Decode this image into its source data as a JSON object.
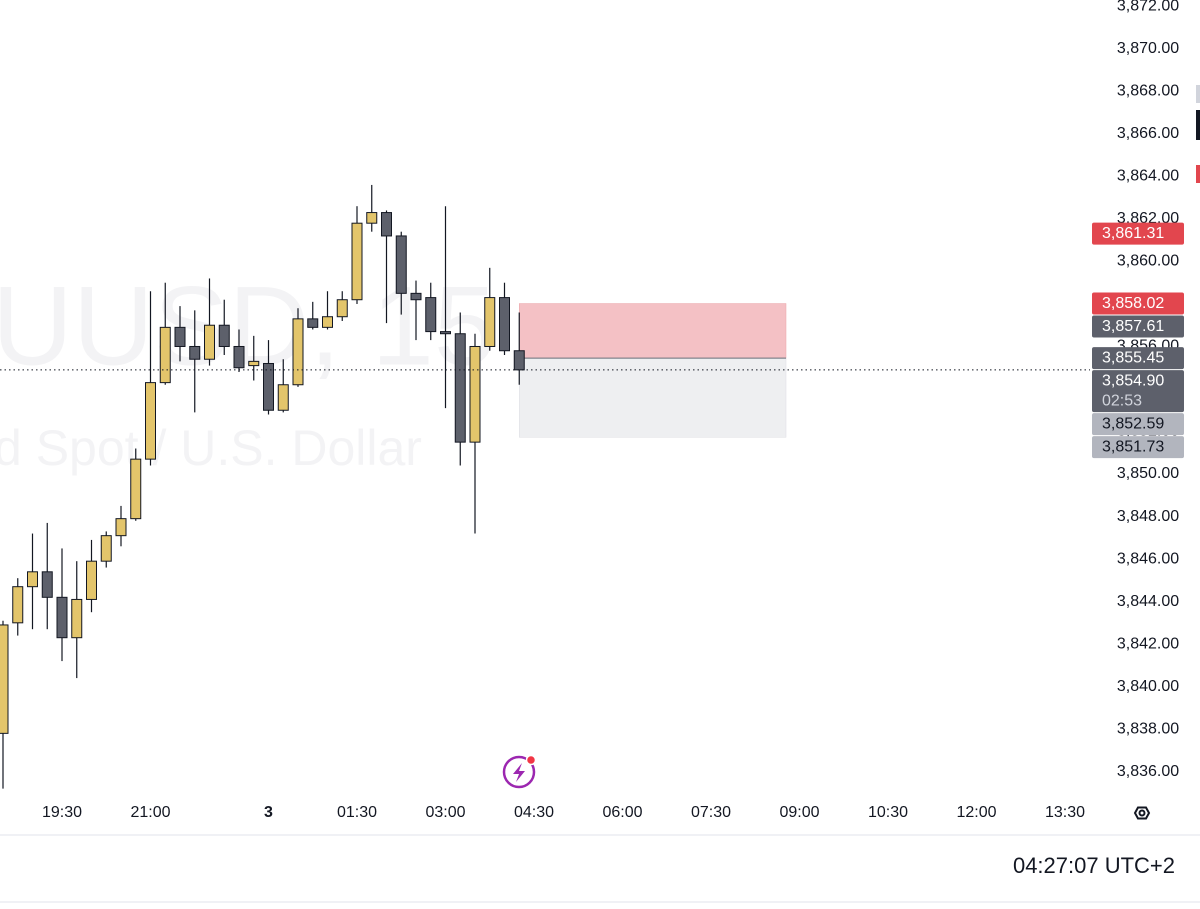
{
  "chart_data": {
    "type": "candlestick",
    "watermark_title": "UUSD, 15",
    "watermark_subtitle": "d Spot / U.S. Dollar",
    "categories": [
      null,
      null,
      null,
      null,
      "19:30",
      null,
      null,
      null,
      null,
      null,
      "21:00",
      null,
      null,
      null,
      null,
      null,
      null,
      null,
      "3",
      null,
      null,
      null,
      null,
      null,
      "01:30",
      null,
      null,
      null,
      null,
      null,
      "03:00",
      null,
      null,
      null,
      null,
      null,
      "04:30",
      null,
      null,
      null,
      null,
      null,
      "06:00",
      null,
      null,
      null,
      null,
      null,
      "07:30",
      null,
      null,
      null,
      null,
      null,
      "09:00",
      null,
      null,
      null,
      null,
      null,
      "10:30",
      null,
      null,
      null,
      null,
      null,
      "12:00",
      null,
      null,
      null,
      null,
      null,
      "13:30"
    ],
    "open": [
      3837.8,
      3843.0,
      3844.7,
      3845.4,
      3844.2,
      3842.3,
      3844.1,
      3845.9,
      3847.1,
      3847.9,
      3850.7,
      3854.3,
      3856.9,
      3856.0,
      3855.4,
      3857.0,
      3856.0,
      3855.1,
      3855.2,
      3853.0,
      3854.2,
      3857.3,
      3856.9,
      3857.4,
      3858.2,
      3861.8,
      3862.3,
      3861.2,
      3858.5,
      3858.3,
      3856.7,
      3856.6,
      3851.5,
      3856.0,
      3858.3,
      3855.8,
      null,
      null,
      null,
      null,
      null,
      null,
      null,
      null,
      null,
      null,
      null,
      null,
      null,
      null,
      null,
      null,
      null,
      null,
      null,
      null,
      null,
      null,
      null,
      null,
      null,
      null,
      null,
      null,
      null,
      null,
      null,
      null,
      null,
      null,
      null,
      null,
      null
    ],
    "high": [
      3843.1,
      3845.1,
      3847.2,
      3847.7,
      3846.5,
      3845.9,
      3846.9,
      3847.3,
      3848.5,
      3851.2,
      3858.6,
      3859.0,
      3857.9,
      3857.7,
      3859.2,
      3858.2,
      3856.8,
      3856.5,
      3856.3,
      3855.4,
      3857.8,
      3858.1,
      3858.6,
      3858.6,
      3862.6,
      3863.6,
      3862.4,
      3861.4,
      3859.1,
      3859.0,
      3862.6,
      3857.6,
      3856.6,
      3859.7,
      3859.0,
      3857.6,
      null,
      null,
      null,
      null,
      null,
      null,
      null,
      null,
      null,
      null,
      null,
      null,
      null,
      null,
      null,
      null,
      null,
      null,
      null,
      null,
      null,
      null,
      null,
      null,
      null,
      null,
      null,
      null,
      null,
      null,
      null,
      null,
      null,
      null,
      null,
      null,
      null
    ],
    "low": [
      3835.2,
      3842.4,
      3842.7,
      3842.7,
      3841.2,
      3840.4,
      3843.5,
      3845.6,
      3846.6,
      3847.8,
      3850.4,
      3854.2,
      3855.3,
      3852.9,
      3855.1,
      3855.6,
      3854.8,
      3854.4,
      3852.8,
      3852.9,
      3854.1,
      3856.8,
      3856.8,
      3857.2,
      3858.0,
      3861.4,
      3857.1,
      3857.5,
      3856.3,
      3856.3,
      3853.1,
      3850.4,
      3847.2,
      3855.8,
      3855.6,
      3854.2,
      null,
      null,
      null,
      null,
      null,
      null,
      null,
      null,
      null,
      null,
      null,
      null,
      null,
      null,
      null,
      null,
      null,
      null,
      null,
      null,
      null,
      null,
      null,
      null,
      null,
      null,
      null,
      null,
      null,
      null,
      null,
      null,
      null,
      null,
      null,
      null,
      null
    ],
    "close": [
      3842.9,
      3844.7,
      3845.4,
      3844.2,
      3842.3,
      3844.1,
      3845.9,
      3847.1,
      3847.9,
      3850.7,
      3854.3,
      3856.9,
      3856.0,
      3855.4,
      3857.0,
      3856.0,
      3855.0,
      3855.3,
      3853.0,
      3854.2,
      3857.3,
      3856.9,
      3857.4,
      3858.2,
      3861.8,
      3862.3,
      3861.2,
      3858.5,
      3858.2,
      3856.7,
      3856.6,
      3851.5,
      3856.0,
      3858.3,
      3855.8,
      3854.9,
      null,
      null,
      null,
      null,
      null,
      null,
      null,
      null,
      null,
      null,
      null,
      null,
      null,
      null,
      null,
      null,
      null,
      null,
      null,
      null,
      null,
      null,
      null,
      null,
      null,
      null,
      null,
      null,
      null,
      null,
      null,
      null,
      null,
      null,
      null,
      null,
      null
    ],
    "up_color": "#e3c56b",
    "down_color": "#5d606b",
    "ylim": [
      3834.9,
      3872.3
    ],
    "yticks": [
      {
        "value": 3836,
        "label": "3,836.00"
      },
      {
        "value": 3838,
        "label": "3,838.00"
      },
      {
        "value": 3840,
        "label": "3,840.00"
      },
      {
        "value": 3842,
        "label": "3,842.00"
      },
      {
        "value": 3844,
        "label": "3,844.00"
      },
      {
        "value": 3846,
        "label": "3,846.00"
      },
      {
        "value": 3848,
        "label": "3,848.00"
      },
      {
        "value": 3850,
        "label": "3,850.00"
      },
      {
        "value": 3852,
        "label": "3,852.00"
      },
      {
        "value": 3854,
        "label": "3,854.00"
      },
      {
        "value": 3856,
        "label": "3,856.00"
      },
      {
        "value": 3858,
        "label": "3,858.00"
      },
      {
        "value": 3860,
        "label": "3,860.00"
      },
      {
        "value": 3862,
        "label": "3,862.00"
      },
      {
        "value": 3864,
        "label": "3,864.00"
      },
      {
        "value": 3866,
        "label": "3,866.00"
      },
      {
        "value": 3868,
        "label": "3,868.00"
      },
      {
        "value": 3870,
        "label": "3,870.00"
      },
      {
        "value": 3872,
        "label": "3,872.00"
      }
    ],
    "grid": false,
    "position": {
      "entry": 3855.45,
      "stop": 3858.02,
      "target": 3851.73,
      "stop_color": "#f4c1c5",
      "target_color": "#eeeff1"
    },
    "last_price": {
      "value": 3854.9,
      "label": "3,854.90",
      "countdown": "02:53",
      "color": "#5d606b"
    },
    "price_labels": [
      {
        "value": 3861.31,
        "label": "3,861.31",
        "color": "#e2464e"
      },
      {
        "value": 3858.02,
        "label": "3,858.02",
        "color": "#e2464e"
      },
      {
        "value": 3857.61,
        "label": "3,857.61",
        "color": "#5d606b"
      },
      {
        "value": 3855.45,
        "label": "3,855.45",
        "color": "#5d606b"
      },
      {
        "value": 3852.59,
        "label": "3,852.59",
        "color": "#b2b5be"
      },
      {
        "value": 3851.73,
        "label": "3,851.73",
        "color": "#b2b5be"
      }
    ],
    "clock": "04:27:07 UTC+2"
  }
}
